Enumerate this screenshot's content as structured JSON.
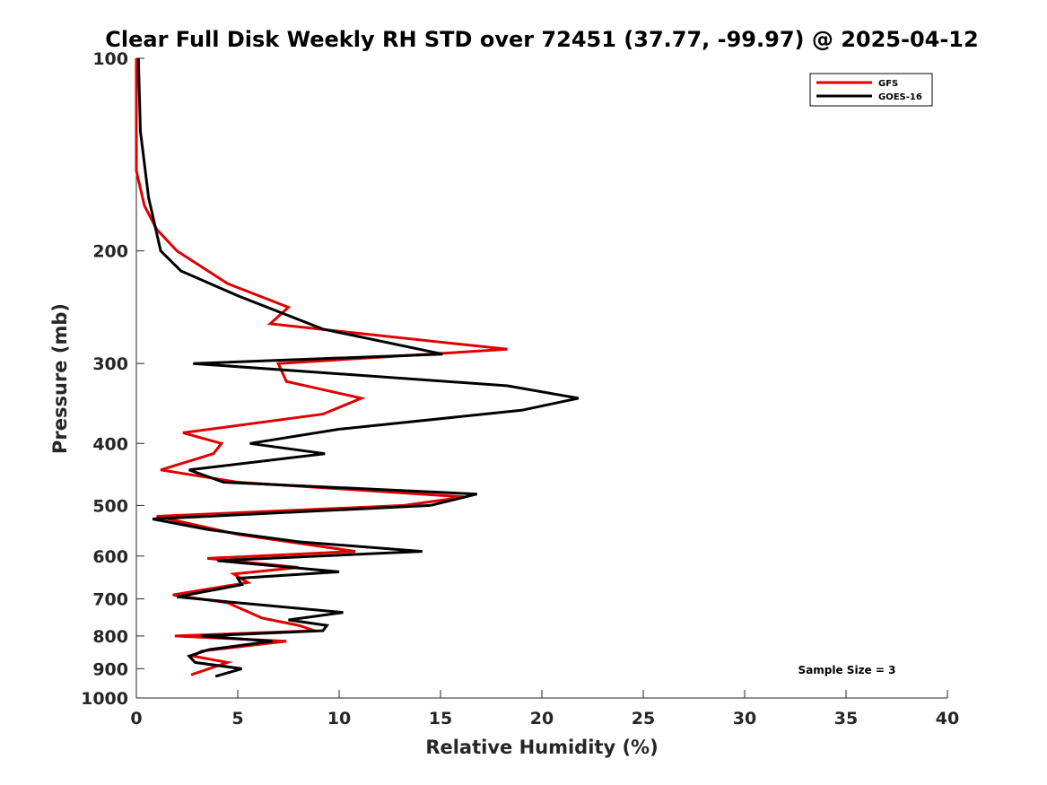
{
  "chart_data": {
    "type": "line",
    "title": "Clear Full Disk Weekly RH STD over 72451 (37.77, -99.97) @ 2025-04-12",
    "xlabel": "Relative Humidity (%)",
    "ylabel": "Pressure (mb)",
    "xlim": [
      0,
      40
    ],
    "ylim": [
      1000,
      100
    ],
    "yscale": "log",
    "grid": false,
    "legend_location": "top-right",
    "x_ticks": [
      0,
      5,
      10,
      15,
      20,
      25,
      30,
      35,
      40
    ],
    "y_ticks": [
      100,
      200,
      300,
      400,
      500,
      600,
      700,
      800,
      900,
      1000
    ],
    "annotation": "Sample Size = 3",
    "series": [
      {
        "name": "GFS",
        "color": "#e00000",
        "points": [
          [
            0.0,
            100
          ],
          [
            0.0,
            150
          ],
          [
            0.4,
            170
          ],
          [
            1.0,
            185
          ],
          [
            2.0,
            200
          ],
          [
            4.5,
            225
          ],
          [
            7.5,
            245
          ],
          [
            6.6,
            260
          ],
          [
            18.3,
            285
          ],
          [
            7.0,
            300
          ],
          [
            7.4,
            320
          ],
          [
            11.1,
            340
          ],
          [
            9.2,
            360
          ],
          [
            2.3,
            385
          ],
          [
            4.2,
            400
          ],
          [
            3.8,
            415
          ],
          [
            1.2,
            440
          ],
          [
            5.0,
            460
          ],
          [
            16.2,
            485
          ],
          [
            13.2,
            500
          ],
          [
            1.0,
            520
          ],
          [
            5.0,
            555
          ],
          [
            10.8,
            590
          ],
          [
            3.5,
            605
          ],
          [
            8.0,
            625
          ],
          [
            4.8,
            640
          ],
          [
            5.5,
            660
          ],
          [
            1.8,
            690
          ],
          [
            4.5,
            710
          ],
          [
            6.2,
            750
          ],
          [
            8.0,
            770
          ],
          [
            8.8,
            785
          ],
          [
            1.9,
            800
          ],
          [
            7.4,
            815
          ],
          [
            3.2,
            845
          ],
          [
            2.8,
            860
          ],
          [
            4.5,
            880
          ],
          [
            2.7,
            920
          ]
        ]
      },
      {
        "name": "GOES-16",
        "color": "#000000",
        "points": [
          [
            0.1,
            100
          ],
          [
            0.2,
            130
          ],
          [
            0.6,
            165
          ],
          [
            1.2,
            200
          ],
          [
            2.2,
            215
          ],
          [
            5.0,
            235
          ],
          [
            9.2,
            265
          ],
          [
            15.1,
            290
          ],
          [
            2.8,
            300
          ],
          [
            18.3,
            325
          ],
          [
            21.8,
            340
          ],
          [
            19.0,
            355
          ],
          [
            10.0,
            380
          ],
          [
            5.6,
            400
          ],
          [
            9.3,
            415
          ],
          [
            2.6,
            440
          ],
          [
            4.3,
            460
          ],
          [
            16.8,
            480
          ],
          [
            14.5,
            500
          ],
          [
            0.8,
            525
          ],
          [
            3.5,
            545
          ],
          [
            8.0,
            570
          ],
          [
            14.1,
            590
          ],
          [
            4.0,
            610
          ],
          [
            10.0,
            635
          ],
          [
            5.0,
            650
          ],
          [
            5.2,
            665
          ],
          [
            2.0,
            695
          ],
          [
            5.0,
            710
          ],
          [
            10.2,
            735
          ],
          [
            7.5,
            755
          ],
          [
            9.4,
            770
          ],
          [
            9.2,
            785
          ],
          [
            3.2,
            800
          ],
          [
            6.7,
            815
          ],
          [
            3.6,
            840
          ],
          [
            2.6,
            860
          ],
          [
            2.9,
            880
          ],
          [
            5.2,
            900
          ],
          [
            3.9,
            925
          ]
        ]
      }
    ]
  }
}
